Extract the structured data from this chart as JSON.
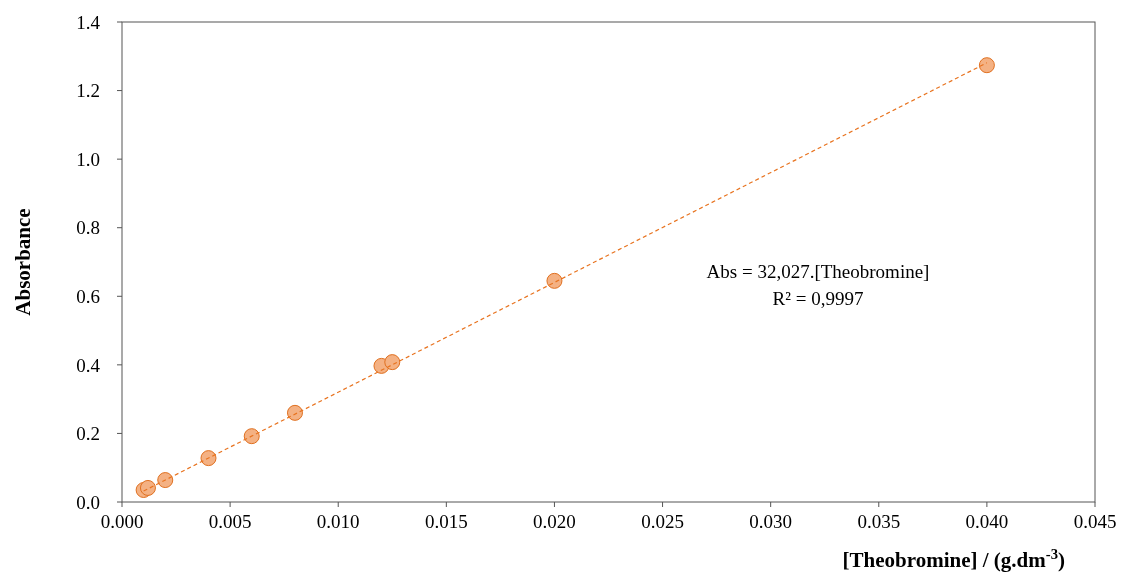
{
  "chart_data": {
    "type": "scatter",
    "xlabel": "[Theobromine] /  (g.dm$^{-3}$)",
    "ylabel": "Absorbance",
    "annotations": [
      "Abs = 32,027.[Theobromine]",
      "R² = 0,9997"
    ],
    "xlim": [
      0,
      0.045
    ],
    "xticks": [
      {
        "value": 0,
        "label": "0.000"
      },
      {
        "value": 0.005,
        "label": "0.005"
      },
      {
        "value": 0.01,
        "label": "0.010"
      },
      {
        "value": 0.015,
        "label": "0.015"
      },
      {
        "value": 0.02,
        "label": "0.020"
      },
      {
        "value": 0.025,
        "label": "0.025"
      },
      {
        "value": 0.03,
        "label": "0.030"
      },
      {
        "value": 0.035,
        "label": "0.035"
      },
      {
        "value": 0.04,
        "label": "0.040"
      },
      {
        "value": 0.045,
        "label": "0.045"
      }
    ],
    "ylim": [
      0,
      1.4
    ],
    "yticks": [
      {
        "value": 0,
        "label": "0.0"
      },
      {
        "value": 0.2,
        "label": "0.2"
      },
      {
        "value": 0.4,
        "label": "0.4"
      },
      {
        "value": 0.6,
        "label": "0.6"
      },
      {
        "value": 0.8,
        "label": "0.8"
      },
      {
        "value": 1,
        "label": "1.0"
      },
      {
        "value": 1.2,
        "label": "1.2"
      },
      {
        "value": 1.4,
        "label": "1.4"
      }
    ],
    "grid": false,
    "series": [
      {
        "marker": "circle",
        "color": "#f4b183",
        "x": [
          0.001,
          0.0012,
          0.002,
          0.004,
          0.006,
          0.008,
          0.012,
          0.0125,
          0.02,
          0.04
        ],
        "values": [
          0.035,
          0.041,
          0.064,
          0.128,
          0.192,
          0.26,
          0.397,
          0.408,
          0.645,
          1.274
        ]
      },
      {
        "type": "line",
        "color": "#e8731f",
        "line_style": "dashed",
        "x": [
          0.001,
          0.04
        ],
        "values": [
          0.032,
          1.281
        ]
      }
    ]
  }
}
